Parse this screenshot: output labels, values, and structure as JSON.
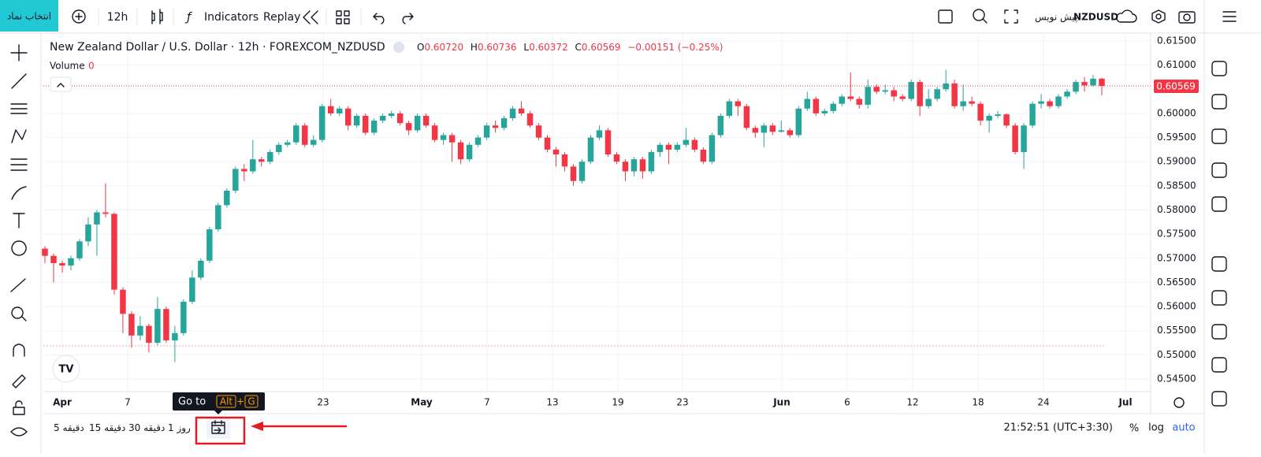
{
  "toolbar": {
    "symbol_button": "انتخاب نماد",
    "interval": "12h",
    "indicators": "Indicators",
    "replay": "Replay",
    "symbol": "NZDUSD",
    "draft": "پیش نویس"
  },
  "header": {
    "title": "New Zealand Dollar / U.S. Dollar · 12h · FOREXCOM_NZDUSD",
    "open_label": "O",
    "open": "0.60720",
    "high_label": "H",
    "high": "0.60736",
    "low_label": "L",
    "low": "0.60372",
    "close_label": "C",
    "close": "0.60569",
    "change": "−0.00151 (−0.25%)",
    "volume_label": "Volume",
    "volume": 0
  },
  "chart": {
    "type": "candlestick",
    "up_color": "#26a69a",
    "down_color": "#f23645",
    "open": [
      0.572,
      0.5705,
      0.569,
      0.5685,
      0.57,
      0.5735,
      0.577,
      0.5795,
      0.5792,
      0.5635,
      0.5585,
      0.554,
      0.556,
      0.5525,
      0.5595,
      0.553,
      0.5545,
      0.561,
      0.566,
      0.5695,
      0.576,
      0.581,
      0.584,
      0.5885,
      0.588,
      0.5905,
      0.59,
      0.592,
      0.5935,
      0.594,
      0.5975,
      0.5935,
      0.5945,
      0.6015,
      0.6,
      0.601,
      0.5975,
      0.5995,
      0.596,
      0.5985,
      0.5995,
      0.6,
      0.598,
      0.5965,
      0.5995,
      0.5975,
      0.5945,
      0.5955,
      0.594,
      0.5905,
      0.5935,
      0.595,
      0.5975,
      0.597,
      0.599,
      0.601,
      0.6,
      0.5975,
      0.595,
      0.5925,
      0.5915,
      0.589,
      0.586,
      0.59,
      0.595,
      0.5965,
      0.5915,
      0.59,
      0.588,
      0.5905,
      0.588,
      0.592,
      0.5935,
      0.5925,
      0.5935,
      0.5945,
      0.5925,
      0.59,
      0.5955,
      0.5995,
      0.6025,
      0.6015,
      0.597,
      0.596,
      0.5975,
      0.5962,
      0.5965,
      0.5955,
      0.601,
      0.603,
      0.6,
      0.6005,
      0.602,
      0.6035,
      0.603,
      0.6018,
      0.6055,
      0.6045,
      0.6048,
      0.6035,
      0.603,
      0.6065,
      0.6015,
      0.603,
      0.605,
      0.6062,
      0.6015,
      0.6025,
      0.602,
      0.5985,
      0.5995,
      0.5998,
      0.5975,
      0.592,
      0.5975,
      0.602,
      0.6025,
      0.6015,
      0.6035,
      0.6045,
      0.6065,
      0.6058,
      0.6072
    ],
    "high": [
      0.5725,
      0.571,
      0.5695,
      0.5705,
      0.574,
      0.5785,
      0.58,
      0.5855,
      0.5795,
      0.564,
      0.559,
      0.558,
      0.5565,
      0.562,
      0.56,
      0.556,
      0.5615,
      0.5675,
      0.57,
      0.5765,
      0.5815,
      0.5845,
      0.589,
      0.5895,
      0.5945,
      0.591,
      0.5925,
      0.594,
      0.5945,
      0.598,
      0.598,
      0.5955,
      0.602,
      0.603,
      0.6015,
      0.6015,
      0.6,
      0.6,
      0.599,
      0.6,
      0.6005,
      0.6005,
      0.5985,
      0.6,
      0.6,
      0.598,
      0.596,
      0.596,
      0.5945,
      0.594,
      0.5955,
      0.598,
      0.5985,
      0.5995,
      0.6015,
      0.6025,
      0.6005,
      0.598,
      0.5955,
      0.593,
      0.592,
      0.5895,
      0.5905,
      0.5955,
      0.5975,
      0.597,
      0.592,
      0.5905,
      0.591,
      0.591,
      0.5925,
      0.594,
      0.594,
      0.594,
      0.597,
      0.595,
      0.593,
      0.596,
      0.6,
      0.603,
      0.603,
      0.602,
      0.5975,
      0.598,
      0.598,
      0.5985,
      0.597,
      0.6015,
      0.6045,
      0.6035,
      0.601,
      0.6025,
      0.604,
      0.6085,
      0.6035,
      0.607,
      0.606,
      0.606,
      0.6055,
      0.604,
      0.607,
      0.607,
      0.605,
      0.6055,
      0.609,
      0.607,
      0.606,
      0.6035,
      0.6025,
      0.6,
      0.6005,
      0.6,
      0.598,
      0.598,
      0.6025,
      0.604,
      0.603,
      0.604,
      0.605,
      0.607,
      0.6075,
      0.608,
      0.60736
    ],
    "low": [
      0.569,
      0.565,
      0.567,
      0.5675,
      0.5695,
      0.5725,
      0.5705,
      0.5785,
      0.5625,
      0.5545,
      0.5515,
      0.553,
      0.5505,
      0.552,
      0.5525,
      0.5485,
      0.554,
      0.5605,
      0.5655,
      0.569,
      0.5755,
      0.5805,
      0.5835,
      0.586,
      0.5875,
      0.589,
      0.5895,
      0.5915,
      0.593,
      0.5935,
      0.593,
      0.593,
      0.594,
      0.5995,
      0.5995,
      0.5965,
      0.597,
      0.5955,
      0.5955,
      0.598,
      0.599,
      0.5975,
      0.5955,
      0.596,
      0.597,
      0.594,
      0.5935,
      0.59,
      0.5895,
      0.59,
      0.593,
      0.5945,
      0.596,
      0.5965,
      0.5985,
      0.5995,
      0.597,
      0.5945,
      0.592,
      0.589,
      0.588,
      0.585,
      0.5855,
      0.5895,
      0.5945,
      0.591,
      0.5895,
      0.586,
      0.587,
      0.5865,
      0.5875,
      0.591,
      0.5895,
      0.592,
      0.593,
      0.592,
      0.5895,
      0.5895,
      0.595,
      0.599,
      0.5995,
      0.5965,
      0.595,
      0.593,
      0.5955,
      0.596,
      0.595,
      0.595,
      0.6005,
      0.5995,
      0.5995,
      0.6,
      0.6015,
      0.6025,
      0.601,
      0.601,
      0.604,
      0.604,
      0.6025,
      0.6025,
      0.6025,
      0.5995,
      0.601,
      0.6025,
      0.6045,
      0.601,
      0.6005,
      0.6015,
      0.5975,
      0.596,
      0.599,
      0.597,
      0.5915,
      0.5885,
      0.597,
      0.601,
      0.601,
      0.601,
      0.603,
      0.604,
      0.6045,
      0.6055,
      0.60372
    ],
    "close": [
      0.5705,
      0.569,
      0.5685,
      0.57,
      0.5735,
      0.577,
      0.5795,
      0.5792,
      0.5635,
      0.5585,
      0.554,
      0.556,
      0.5525,
      0.5595,
      0.553,
      0.5545,
      0.561,
      0.566,
      0.5695,
      0.576,
      0.581,
      0.584,
      0.5885,
      0.588,
      0.5905,
      0.59,
      0.592,
      0.5935,
      0.594,
      0.5975,
      0.5935,
      0.5945,
      0.6015,
      0.6,
      0.601,
      0.5975,
      0.5995,
      0.596,
      0.5985,
      0.5995,
      0.6,
      0.598,
      0.5965,
      0.5995,
      0.5975,
      0.5945,
      0.5955,
      0.594,
      0.5905,
      0.5935,
      0.595,
      0.5975,
      0.597,
      0.599,
      0.601,
      0.6,
      0.5975,
      0.595,
      0.5925,
      0.5915,
      0.589,
      0.586,
      0.59,
      0.595,
      0.5965,
      0.5915,
      0.59,
      0.588,
      0.5905,
      0.588,
      0.592,
      0.5935,
      0.5925,
      0.5935,
      0.5945,
      0.5925,
      0.59,
      0.5955,
      0.5995,
      0.6025,
      0.6015,
      0.597,
      0.596,
      0.5975,
      0.5962,
      0.5965,
      0.5955,
      0.601,
      0.603,
      0.6,
      0.6005,
      0.602,
      0.6035,
      0.603,
      0.6018,
      0.6055,
      0.6045,
      0.6048,
      0.6035,
      0.603,
      0.6065,
      0.6015,
      0.603,
      0.605,
      0.6062,
      0.6015,
      0.6025,
      0.602,
      0.5985,
      0.5995,
      0.5998,
      0.5975,
      0.592,
      0.5975,
      0.602,
      0.6025,
      0.6015,
      0.6035,
      0.6045,
      0.6065,
      0.6058,
      0.6072,
      0.60569
    ],
    "ylim": [
      0.545,
      0.615
    ],
    "yticks": [
      {
        "value": 0.615,
        "label": "0.61500"
      },
      {
        "value": 0.61,
        "label": "0.61000"
      },
      {
        "value": 0.605,
        "label": "0.60500"
      },
      {
        "value": 0.6,
        "label": "0.60000"
      },
      {
        "value": 0.595,
        "label": "0.59500"
      },
      {
        "value": 0.59,
        "label": "0.59000"
      },
      {
        "value": 0.585,
        "label": "0.58500"
      },
      {
        "value": 0.58,
        "label": "0.58000"
      },
      {
        "value": 0.575,
        "label": "0.57500"
      },
      {
        "value": 0.57,
        "label": "0.57000"
      },
      {
        "value": 0.565,
        "label": "0.56500"
      },
      {
        "value": 0.56,
        "label": "0.56000"
      },
      {
        "value": 0.555,
        "label": "0.55500"
      },
      {
        "value": 0.55,
        "label": "0.55000"
      },
      {
        "value": 0.545,
        "label": "0.54500"
      }
    ],
    "x_labels": [
      "Apr",
      "7",
      "23",
      "May",
      "7",
      "13",
      "19",
      "23",
      "Jun",
      "6",
      "12",
      "18",
      "24",
      "Jul"
    ],
    "grid": true
  },
  "goto_tooltip": {
    "label": "Go to",
    "key1": "Alt",
    "plus": "+",
    "key2": "G"
  },
  "bottom_bar": {
    "ranges": [
      "5 دقیقه",
      "15 دقیقه",
      "30 دقیقه",
      "1 روز"
    ],
    "clock": "21:52:51 (UTC+3:30)",
    "percent": "%",
    "log": "log",
    "auto": "auto"
  }
}
